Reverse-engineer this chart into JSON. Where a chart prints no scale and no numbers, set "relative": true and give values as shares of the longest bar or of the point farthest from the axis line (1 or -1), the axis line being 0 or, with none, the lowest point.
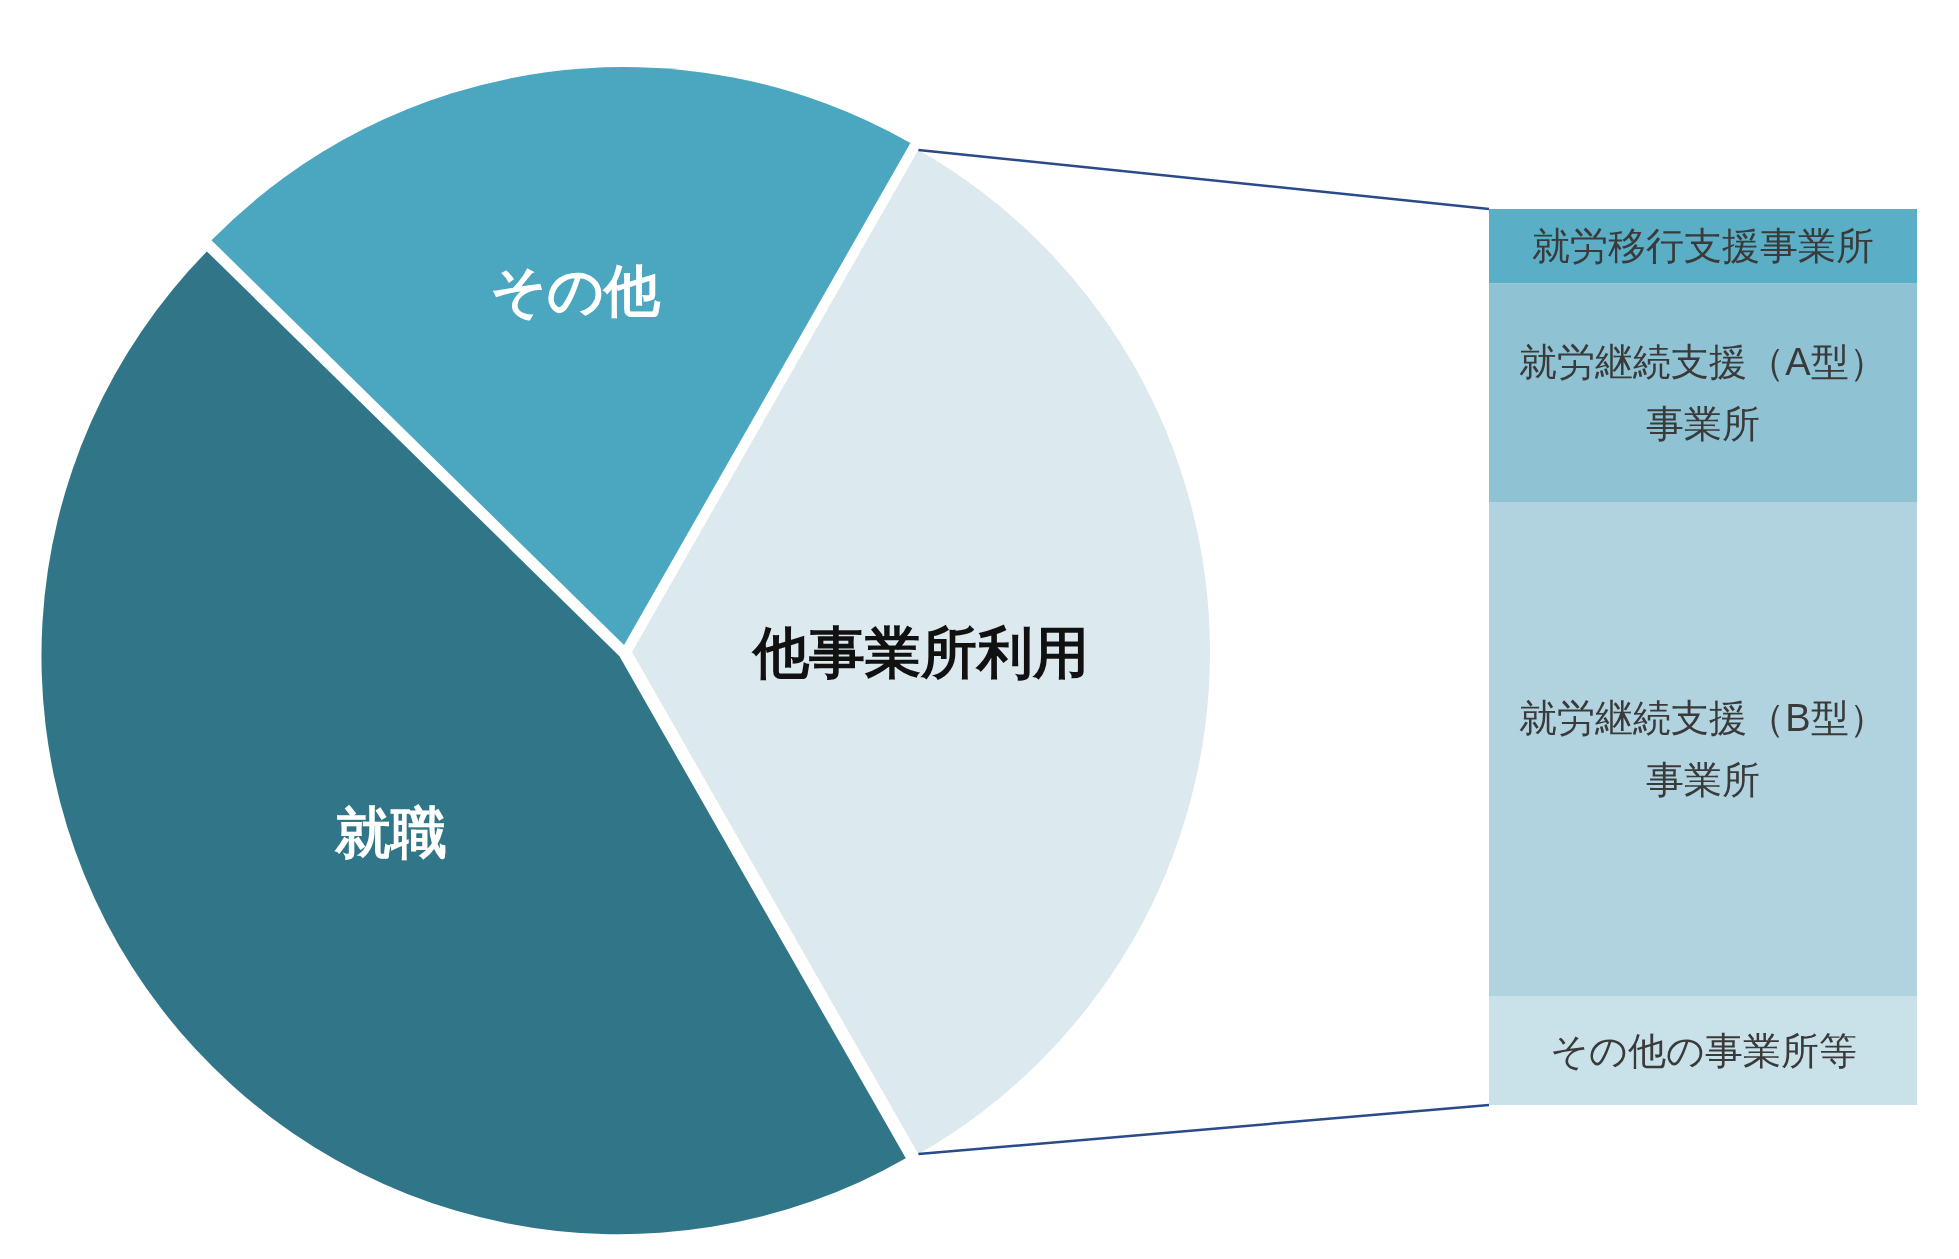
{
  "chart_data": [
    {
      "type": "pie",
      "categories": [
        "他事業所利用",
        "就職",
        "その他"
      ],
      "values": [
        33.5,
        45.6,
        20.9
      ],
      "colors": [
        "#dceaef",
        "#307688",
        "#4aa7bf"
      ]
    },
    {
      "type": "bar",
      "stacked": true,
      "relative": true,
      "categories": [
        null
      ],
      "series": [
        {
          "name": "その他の事業所等",
          "color": "#c9e1e8",
          "values": [
            0.121
          ]
        },
        {
          "name": "就労継続支援（B型）事業所",
          "color": "#b0d3df",
          "values": [
            0.552
          ]
        },
        {
          "name": "就労継続支援（A型）事業所",
          "color": "#8fc2d3",
          "values": [
            0.244
          ]
        },
        {
          "name": "就労移行支援事業所",
          "color": "#5aaec6",
          "values": [
            0.083
          ]
        }
      ]
    }
  ]
}
